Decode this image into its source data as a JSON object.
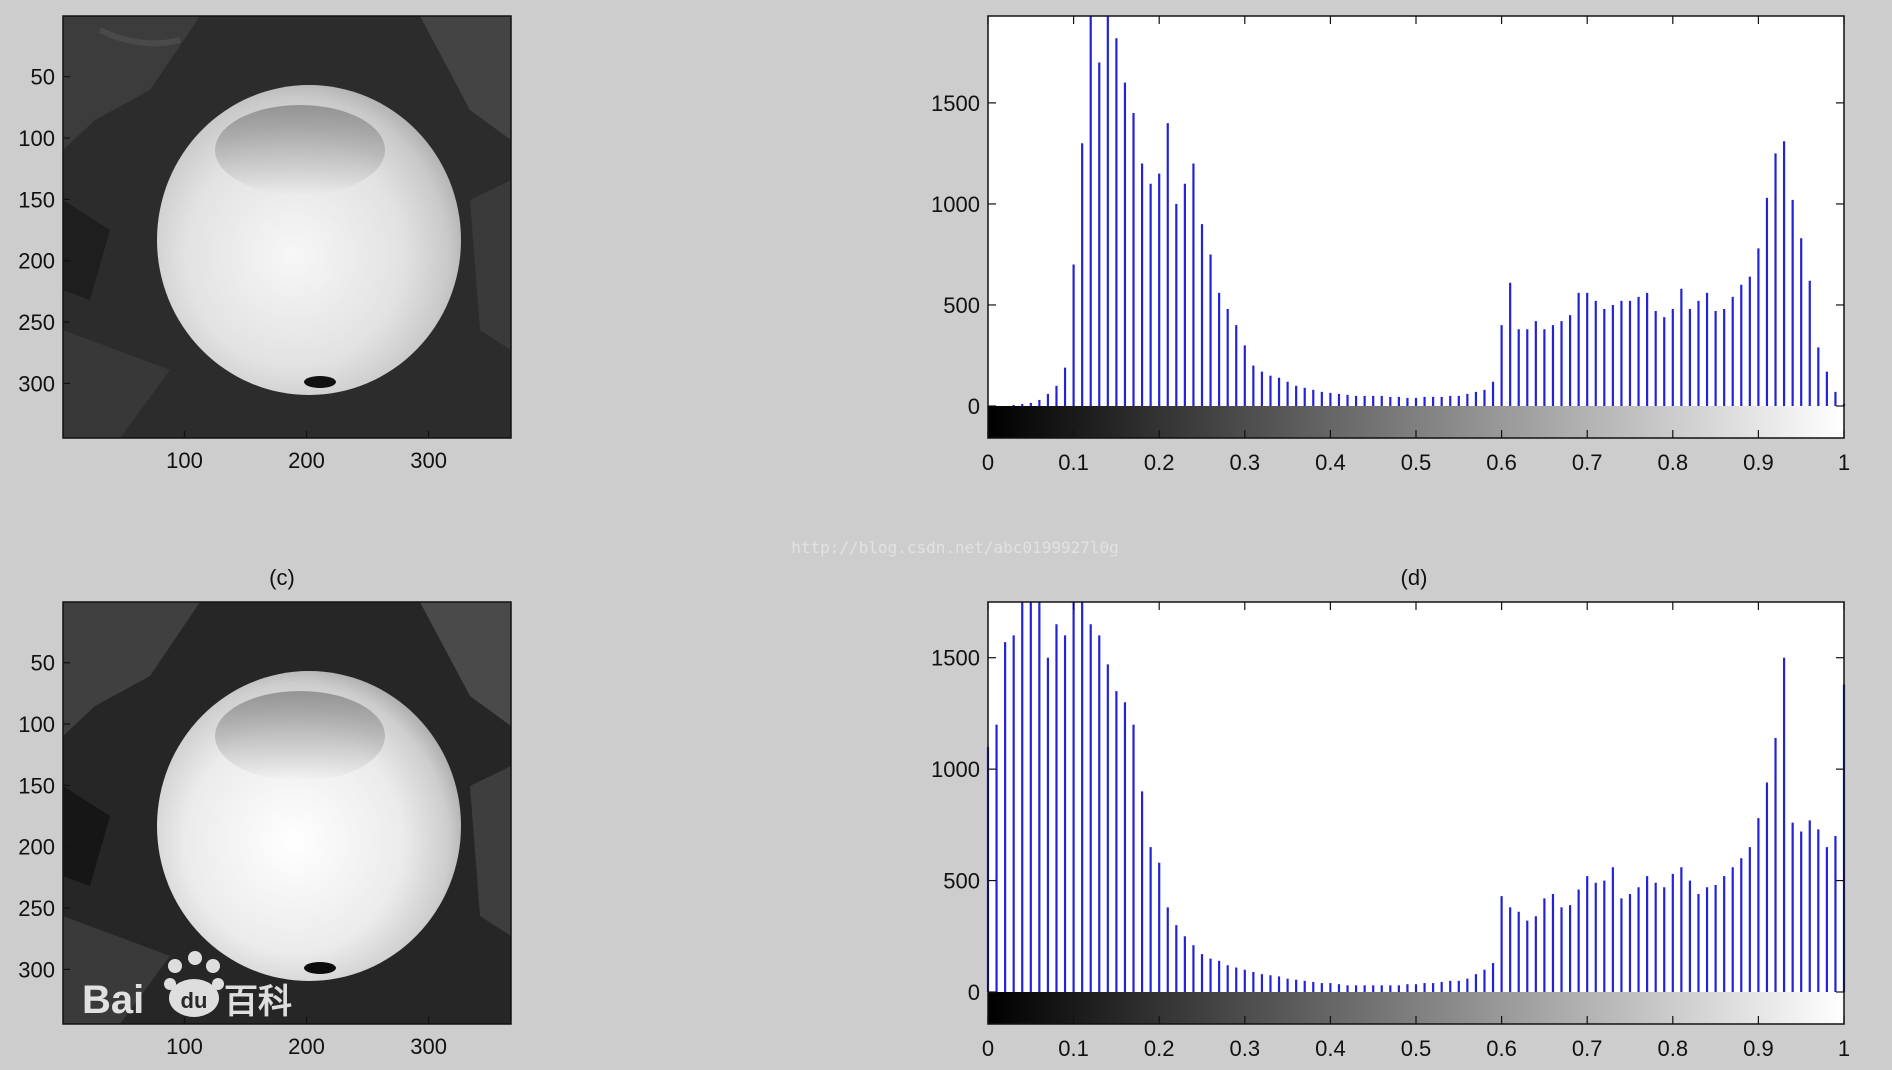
{
  "watermark": "http://blog.csdn.net/abc0199927l0g",
  "logo": {
    "text_left": "Bai",
    "text_mid": "du",
    "text_right": "百科"
  },
  "colors": {
    "bars": "#2323d6",
    "axes": "#111111",
    "background": "#cdcdcd"
  },
  "panels": [
    {
      "type": "image",
      "title": "",
      "xticks": [
        "100",
        "200",
        "300"
      ],
      "xtick_values": [
        100,
        200,
        300
      ],
      "yticks": [
        "50",
        "100",
        "150",
        "200",
        "250",
        "300"
      ],
      "ytick_values": [
        50,
        100,
        150,
        200,
        250,
        300
      ],
      "xlim": [
        0.5,
        367.5
      ],
      "ylim": [
        0.5,
        344.5
      ],
      "content": "grayscale photo of a bright sphere on dark background"
    },
    {
      "type": "histogram",
      "title": "",
      "xticks": [
        "0",
        "0.1",
        "0.2",
        "0.3",
        "0.4",
        "0.5",
        "0.6",
        "0.7",
        "0.8",
        "0.9",
        "1"
      ],
      "xtick_values": [
        0,
        0.1,
        0.2,
        0.3,
        0.4,
        0.5,
        0.6,
        0.7,
        0.8,
        0.9,
        1
      ],
      "yticks": [
        "0",
        "500",
        "1000",
        "1500"
      ],
      "ytick_values": [
        0,
        500,
        1000,
        1500
      ]
    },
    {
      "type": "image",
      "title": "(c)",
      "xticks": [
        "100",
        "200",
        "300"
      ],
      "xtick_values": [
        100,
        200,
        300
      ],
      "yticks": [
        "50",
        "100",
        "150",
        "200",
        "250",
        "300"
      ],
      "ytick_values": [
        50,
        100,
        150,
        200,
        250,
        300
      ],
      "xlim": [
        0.5,
        367.5
      ],
      "ylim": [
        0.5,
        344.5
      ],
      "content": "contrast-enhanced grayscale photo of a bright sphere"
    },
    {
      "type": "histogram",
      "title": "(d)",
      "xticks": [
        "0",
        "0.1",
        "0.2",
        "0.3",
        "0.4",
        "0.5",
        "0.6",
        "0.7",
        "0.8",
        "0.9",
        "1"
      ],
      "xtick_values": [
        0,
        0.1,
        0.2,
        0.3,
        0.4,
        0.5,
        0.6,
        0.7,
        0.8,
        0.9,
        1
      ],
      "yticks": [
        "0",
        "500",
        "1000",
        "1500"
      ],
      "ytick_values": [
        0,
        500,
        1000,
        1500
      ]
    }
  ],
  "chart_data": [
    {
      "type": "bar",
      "title": "",
      "xlabel": "",
      "ylabel": "",
      "xlim": [
        0,
        1
      ],
      "ylim": [
        0,
        1930
      ],
      "grid": false,
      "x": [
        0.0,
        0.01,
        0.02,
        0.03,
        0.04,
        0.05,
        0.06,
        0.07,
        0.08,
        0.09,
        0.1,
        0.11,
        0.12,
        0.13,
        0.14,
        0.15,
        0.16,
        0.17,
        0.18,
        0.19,
        0.2,
        0.21,
        0.22,
        0.23,
        0.24,
        0.25,
        0.26,
        0.27,
        0.28,
        0.29,
        0.3,
        0.31,
        0.32,
        0.33,
        0.34,
        0.35,
        0.36,
        0.37,
        0.38,
        0.39,
        0.4,
        0.41,
        0.42,
        0.43,
        0.44,
        0.45,
        0.46,
        0.47,
        0.48,
        0.49,
        0.5,
        0.51,
        0.52,
        0.53,
        0.54,
        0.55,
        0.56,
        0.57,
        0.58,
        0.59,
        0.6,
        0.61,
        0.62,
        0.63,
        0.64,
        0.65,
        0.66,
        0.67,
        0.68,
        0.69,
        0.7,
        0.71,
        0.72,
        0.73,
        0.74,
        0.75,
        0.76,
        0.77,
        0.78,
        0.79,
        0.8,
        0.81,
        0.82,
        0.83,
        0.84,
        0.85,
        0.86,
        0.87,
        0.88,
        0.89,
        0.9,
        0.91,
        0.92,
        0.93,
        0.94,
        0.95,
        0.96,
        0.97,
        0.98,
        0.99,
        1.0
      ],
      "values": [
        0,
        0,
        0,
        5,
        10,
        15,
        30,
        60,
        100,
        190,
        700,
        1300,
        1930,
        1700,
        1930,
        1820,
        1600,
        1450,
        1200,
        1100,
        1150,
        1400,
        1000,
        1100,
        1200,
        900,
        750,
        560,
        480,
        400,
        300,
        200,
        170,
        150,
        140,
        120,
        100,
        90,
        80,
        70,
        65,
        60,
        55,
        50,
        50,
        50,
        50,
        45,
        45,
        40,
        40,
        45,
        45,
        45,
        50,
        50,
        60,
        70,
        80,
        120,
        400,
        610,
        380,
        380,
        420,
        380,
        400,
        420,
        450,
        560,
        560,
        520,
        480,
        500,
        520,
        520,
        540,
        560,
        470,
        440,
        480,
        580,
        480,
        520,
        560,
        470,
        480,
        540,
        600,
        640,
        780,
        1030,
        1250,
        1310,
        1020,
        830,
        620,
        290,
        170,
        70,
        10
      ]
    },
    {
      "type": "bar",
      "title": "(d)",
      "xlabel": "",
      "ylabel": "",
      "xlim": [
        0,
        1
      ],
      "ylim": [
        0,
        1750
      ],
      "grid": false,
      "x": [
        0.0,
        0.01,
        0.02,
        0.03,
        0.04,
        0.05,
        0.06,
        0.07,
        0.08,
        0.09,
        0.1,
        0.11,
        0.12,
        0.13,
        0.14,
        0.15,
        0.16,
        0.17,
        0.18,
        0.19,
        0.2,
        0.21,
        0.22,
        0.23,
        0.24,
        0.25,
        0.26,
        0.27,
        0.28,
        0.29,
        0.3,
        0.31,
        0.32,
        0.33,
        0.34,
        0.35,
        0.36,
        0.37,
        0.38,
        0.39,
        0.4,
        0.41,
        0.42,
        0.43,
        0.44,
        0.45,
        0.46,
        0.47,
        0.48,
        0.49,
        0.5,
        0.51,
        0.52,
        0.53,
        0.54,
        0.55,
        0.56,
        0.57,
        0.58,
        0.59,
        0.6,
        0.61,
        0.62,
        0.63,
        0.64,
        0.65,
        0.66,
        0.67,
        0.68,
        0.69,
        0.7,
        0.71,
        0.72,
        0.73,
        0.74,
        0.75,
        0.76,
        0.77,
        0.78,
        0.79,
        0.8,
        0.81,
        0.82,
        0.83,
        0.84,
        0.85,
        0.86,
        0.87,
        0.88,
        0.89,
        0.9,
        0.91,
        0.92,
        0.93,
        0.94,
        0.95,
        0.96,
        0.97,
        0.98,
        0.99,
        1.0
      ],
      "values": [
        1100,
        1200,
        1570,
        1600,
        1750,
        1750,
        1750,
        1500,
        1650,
        1600,
        1750,
        1750,
        1650,
        1600,
        1470,
        1350,
        1300,
        1200,
        900,
        650,
        580,
        380,
        300,
        250,
        210,
        170,
        150,
        140,
        120,
        110,
        100,
        90,
        80,
        75,
        70,
        60,
        55,
        50,
        45,
        40,
        40,
        35,
        30,
        30,
        30,
        30,
        30,
        30,
        30,
        35,
        35,
        40,
        40,
        45,
        50,
        50,
        60,
        80,
        100,
        130,
        430,
        380,
        360,
        320,
        340,
        420,
        440,
        380,
        390,
        460,
        520,
        490,
        500,
        560,
        420,
        440,
        470,
        520,
        490,
        470,
        530,
        560,
        500,
        440,
        470,
        480,
        520,
        560,
        600,
        650,
        780,
        940,
        1140,
        1500,
        760,
        720,
        770,
        730,
        650,
        700,
        1380
      ]
    }
  ]
}
